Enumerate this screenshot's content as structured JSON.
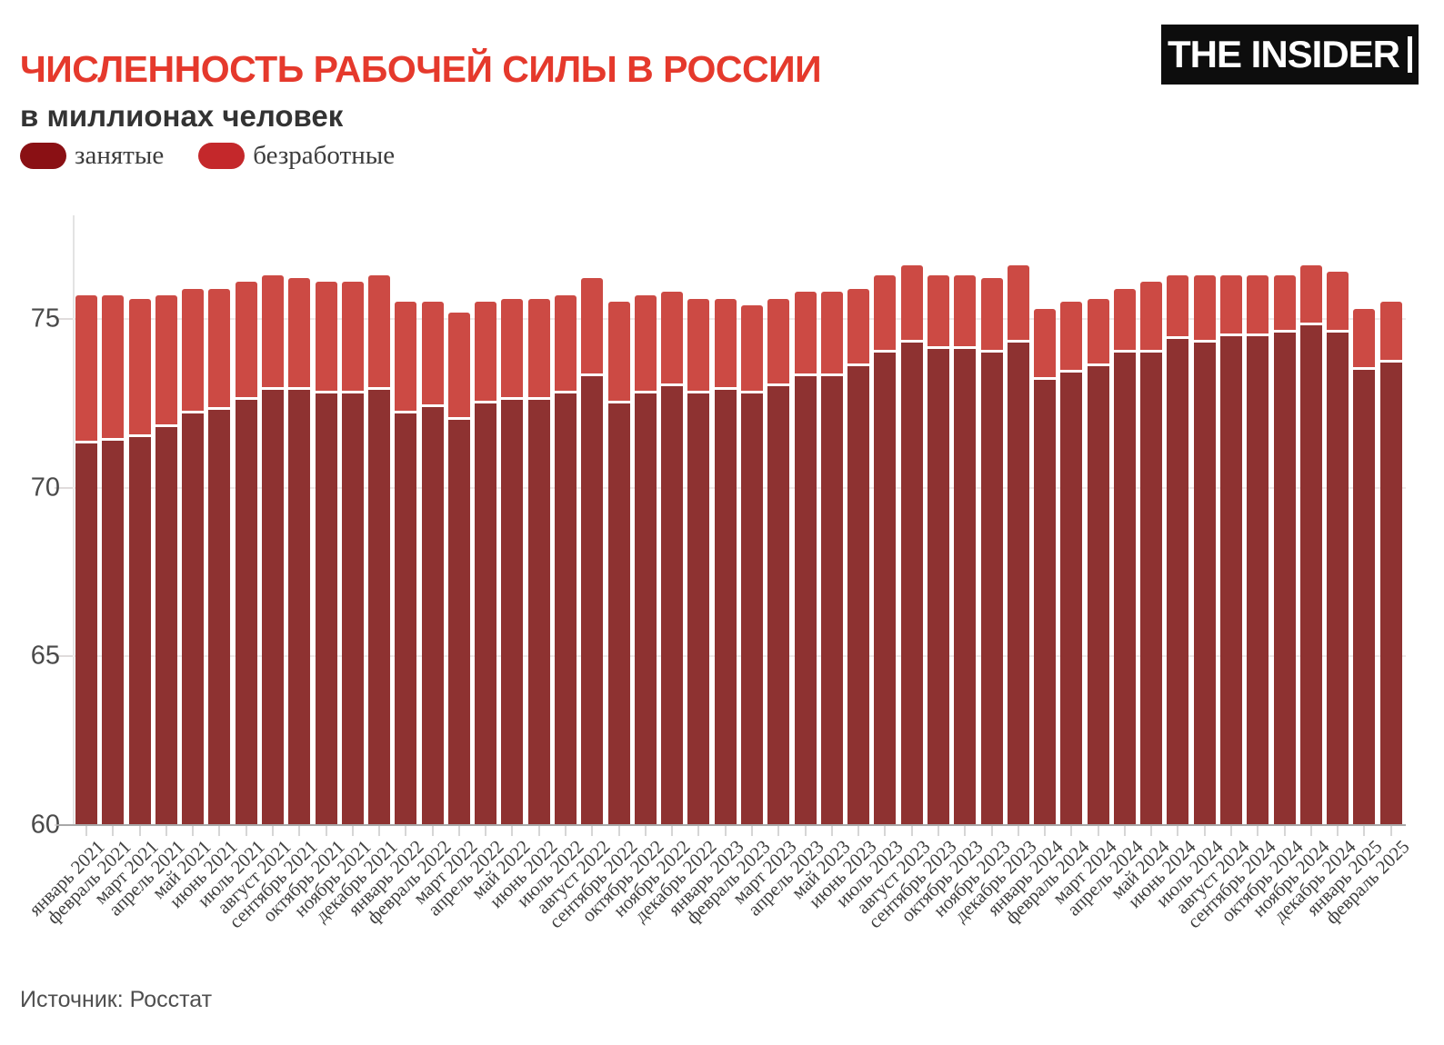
{
  "header": {
    "title": "ЧИСЛЕННОСТЬ РАБОЧЕЙ СИЛЫ В РОССИИ",
    "subtitle": "в миллионах человек",
    "logo_text": "THE INSIDER"
  },
  "legend": {
    "items": [
      {
        "label": "занятые",
        "color": "#8a1014"
      },
      {
        "label": "безработные",
        "color": "#c4282b"
      }
    ]
  },
  "source": "Источник: Росстат",
  "colors": {
    "title": "#e5392c",
    "bar_employed": "#8e3231",
    "bar_unemployed": "#cc4a44",
    "gridline": "#eeeaea",
    "baseline": "#a8a8a8"
  },
  "chart_data": {
    "type": "bar",
    "stacked": true,
    "title": "ЧИСЛЕННОСТЬ РАБОЧЕЙ СИЛЫ В РОССИИ",
    "subtitle": "в миллионах человек",
    "unit": "millions of people",
    "grid": true,
    "legend_position": "top-left",
    "ylim": [
      60,
      78.1
    ],
    "yticks": [
      60,
      65,
      70,
      75
    ],
    "categories": [
      "январь 2021",
      "февраль 2021",
      "март 2021",
      "апрель 2021",
      "май 2021",
      "июнь 2021",
      "июль 2021",
      "август 2021",
      "сентябрь 2021",
      "октябрь 2021",
      "ноябрь 2021",
      "декабрь 2021",
      "январь 2022",
      "февраль 2022",
      "март 2022",
      "апрель 2022",
      "май 2022",
      "июнь 2022",
      "июль 2022",
      "август 2022",
      "сентябрь 2022",
      "октябрь 2022",
      "ноябрь 2022",
      "декабрь 2022",
      "январь 2023",
      "февраль 2023",
      "март 2023",
      "апрель 2023",
      "май 2023",
      "июнь 2023",
      "июль 2023",
      "август 2023",
      "сентябрь 2023",
      "октябрь 2023",
      "ноябрь 2023",
      "декабрь 2023",
      "январь 2024",
      "февраль 2024",
      "март 2024",
      "апрель 2024",
      "май 2024",
      "июнь 2024",
      "июль 2024",
      "август 2024",
      "сентябрь 2024",
      "октябрь 2024",
      "ноябрь 2024",
      "декабрь 2024",
      "январь 2025",
      "февраль 2025"
    ],
    "series": [
      {
        "name": "занятые",
        "color": "#8e3231",
        "values": [
          71.3,
          71.4,
          71.5,
          71.8,
          72.2,
          72.3,
          72.6,
          72.9,
          72.9,
          72.8,
          72.8,
          72.9,
          72.2,
          72.4,
          72.0,
          72.5,
          72.6,
          72.6,
          72.8,
          73.3,
          72.5,
          72.8,
          73.0,
          72.8,
          72.9,
          72.8,
          73.0,
          73.3,
          73.3,
          73.6,
          74.0,
          74.3,
          74.1,
          74.1,
          74.0,
          74.3,
          73.2,
          73.4,
          73.6,
          74.0,
          74.0,
          74.4,
          74.3,
          74.5,
          74.5,
          74.6,
          74.8,
          74.6,
          73.5,
          73.7
        ]
      },
      {
        "name": "безработные",
        "color": "#cc4a44",
        "values": [
          4.4,
          4.3,
          4.1,
          3.9,
          3.7,
          3.6,
          3.5,
          3.4,
          3.3,
          3.3,
          3.3,
          3.4,
          3.3,
          3.1,
          3.2,
          3.0,
          3.0,
          3.0,
          2.9,
          2.9,
          3.0,
          2.9,
          2.8,
          2.8,
          2.7,
          2.6,
          2.6,
          2.5,
          2.5,
          2.3,
          2.3,
          2.3,
          2.2,
          2.2,
          2.2,
          2.3,
          2.1,
          2.1,
          2.0,
          1.9,
          2.1,
          1.9,
          2.0,
          1.8,
          1.8,
          1.7,
          1.8,
          1.8,
          1.8,
          1.8
        ]
      }
    ]
  }
}
